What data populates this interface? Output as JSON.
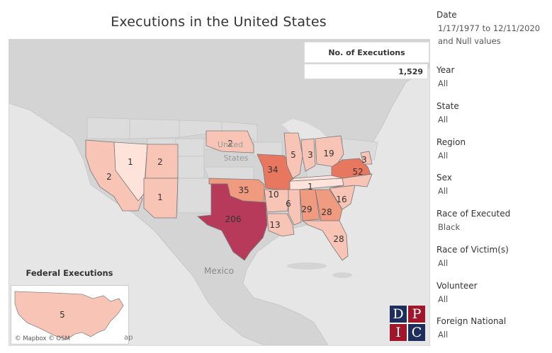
{
  "title": "Executions in the United States",
  "kpi": {
    "label": "No. of Executions",
    "value": "1,529"
  },
  "federal": {
    "title": "Federal Executions",
    "value": "5"
  },
  "map_labels": {
    "mexico": "Mexico",
    "united": "United",
    "states": "States"
  },
  "attribution": {
    "credit": "© Mapbox © OSM",
    "fragment": "ap"
  },
  "logo": {
    "letters": [
      "D",
      "P",
      "I",
      "C"
    ]
  },
  "state_counts": [
    {
      "state": "California",
      "value": "2"
    },
    {
      "state": "Nevada",
      "value": "1"
    },
    {
      "state": "Utah",
      "value": "2"
    },
    {
      "state": "Arizona",
      "value": "1"
    },
    {
      "state": "Nebraska",
      "value": "2"
    },
    {
      "state": "Oklahoma",
      "value": "35"
    },
    {
      "state": "Texas",
      "value": "206"
    },
    {
      "state": "Missouri",
      "value": "34"
    },
    {
      "state": "Arkansas",
      "value": "10"
    },
    {
      "state": "Louisiana",
      "value": "13"
    },
    {
      "state": "Illinois",
      "value": "5"
    },
    {
      "state": "Indiana",
      "value": "3"
    },
    {
      "state": "Ohio",
      "value": "19"
    },
    {
      "state": "Tennessee",
      "value": "1"
    },
    {
      "state": "Mississippi",
      "value": "6"
    },
    {
      "state": "Alabama",
      "value": "29"
    },
    {
      "state": "Georgia",
      "value": "28"
    },
    {
      "state": "South Carolina",
      "value": "16"
    },
    {
      "state": "Florida",
      "value": "28"
    },
    {
      "state": "Virginia",
      "value": "52"
    },
    {
      "state": "Delaware",
      "value": "3"
    }
  ],
  "colors": {
    "light": "#f8c4b6",
    "mid": "#f09a80",
    "strong": "#e8775f",
    "darkest": "#b83a5a",
    "land": "#d2d2d2",
    "water": "#e6e6e6",
    "gray_state": "#d8d8d8"
  },
  "filters": [
    {
      "label": "Date",
      "value": "1/17/1977 to 12/11/2020 and Null values"
    },
    {
      "label": "Year",
      "value": "All"
    },
    {
      "label": "State",
      "value": "All"
    },
    {
      "label": "Region",
      "value": "All"
    },
    {
      "label": "Sex",
      "value": "All"
    },
    {
      "label": "Race of Executed",
      "value": "Black"
    },
    {
      "label": "Race of Victim(s)",
      "value": "All"
    },
    {
      "label": "Volunteer",
      "value": "All"
    },
    {
      "label": "Foreign National",
      "value": "All"
    }
  ]
}
